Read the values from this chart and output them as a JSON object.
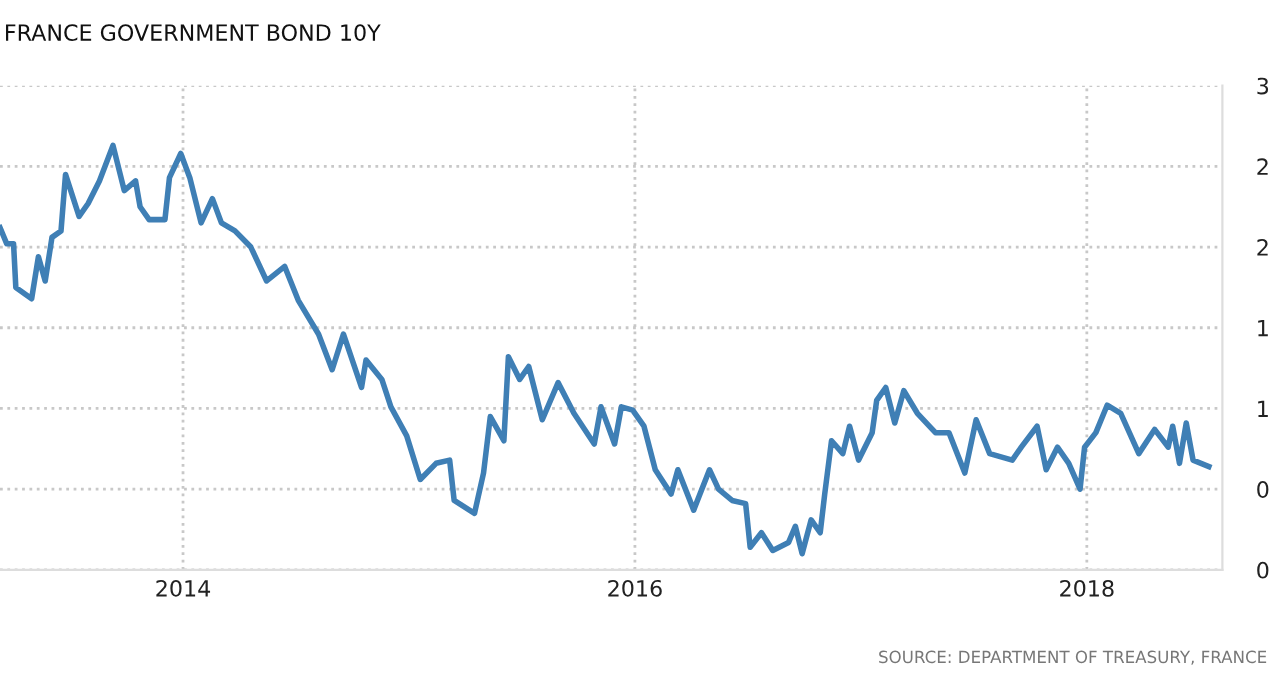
{
  "chart_data": {
    "type": "line",
    "title": "FRANCE GOVERNMENT BOND 10Y",
    "annotations": [
      "SOURCE: DEPARTMENT OF TREASURY, FRANCE"
    ],
    "x": [
      2013.19,
      2013.22,
      2013.25,
      2013.26,
      2013.33,
      2013.36,
      2013.39,
      2013.42,
      2013.46,
      2013.48,
      2013.54,
      2013.58,
      2013.63,
      2013.69,
      2013.74,
      2013.79,
      2013.81,
      2013.85,
      2013.92,
      2013.94,
      2013.99,
      2014.03,
      2014.08,
      2014.13,
      2014.17,
      2014.23,
      2014.3,
      2014.37,
      2014.45,
      2014.51,
      2014.6,
      2014.66,
      2014.71,
      2014.79,
      2014.81,
      2014.88,
      2014.92,
      2014.99,
      2015.05,
      2015.12,
      2015.18,
      2015.2,
      2015.29,
      2015.33,
      2015.36,
      2015.42,
      2015.44,
      2015.49,
      2015.53,
      2015.59,
      2015.66,
      2015.73,
      2015.82,
      2015.85,
      2015.91,
      2015.94,
      2015.99,
      2016.04,
      2016.09,
      2016.16,
      2016.19,
      2016.26,
      2016.33,
      2016.37,
      2016.43,
      2016.49,
      2016.51,
      2016.56,
      2016.61,
      2016.68,
      2016.71,
      2016.74,
      2016.78,
      2016.82,
      2016.84,
      2016.87,
      2016.92,
      2016.95,
      2016.99,
      2017.05,
      2017.07,
      2017.11,
      2017.15,
      2017.19,
      2017.25,
      2017.33,
      2017.39,
      2017.46,
      2017.51,
      2017.57,
      2017.67,
      2017.71,
      2017.78,
      2017.82,
      2017.87,
      2017.92,
      2017.97,
      2017.99,
      2018.04,
      2018.09,
      2018.15,
      2018.23,
      2018.3,
      2018.36,
      2018.38,
      2018.41,
      2018.44,
      2018.47,
      2018.54
    ],
    "series": [
      {
        "color": "#3f7fb5",
        "values": [
          2.12,
          2.02,
          2.02,
          1.75,
          1.68,
          1.94,
          1.79,
          2.06,
          2.1,
          2.45,
          2.19,
          2.27,
          2.41,
          2.63,
          2.35,
          2.41,
          2.25,
          2.17,
          2.17,
          2.43,
          2.58,
          2.43,
          2.15,
          2.3,
          2.15,
          2.1,
          2.0,
          1.79,
          1.88,
          1.67,
          1.46,
          1.24,
          1.46,
          1.13,
          1.3,
          1.18,
          1.01,
          0.83,
          0.56,
          0.66,
          0.68,
          0.43,
          0.35,
          0.6,
          0.95,
          0.8,
          1.32,
          1.18,
          1.26,
          0.93,
          1.16,
          0.97,
          0.78,
          1.01,
          0.78,
          1.01,
          0.99,
          0.89,
          0.62,
          0.47,
          0.62,
          0.37,
          0.62,
          0.5,
          0.43,
          0.41,
          0.14,
          0.23,
          0.12,
          0.17,
          0.27,
          0.1,
          0.31,
          0.23,
          0.47,
          0.8,
          0.72,
          0.89,
          0.68,
          0.85,
          1.05,
          1.13,
          0.91,
          1.11,
          0.97,
          0.85,
          0.85,
          0.6,
          0.93,
          0.72,
          0.68,
          0.76,
          0.89,
          0.62,
          0.76,
          0.66,
          0.5,
          0.76,
          0.85,
          1.02,
          0.97,
          0.72,
          0.87,
          0.76,
          0.89,
          0.66,
          0.91,
          0.68,
          0.64
        ]
      }
    ],
    "xlim": [
      2013.19,
      2018.6
    ],
    "xticks": [
      2014,
      2016,
      2018
    ],
    "ylim": [
      0,
      3
    ],
    "yticks": [
      {
        "value": 0,
        "label": "0"
      },
      {
        "value": 0.5,
        "label": "0"
      },
      {
        "value": 1,
        "label": "1"
      },
      {
        "value": 1.5,
        "label": "1"
      },
      {
        "value": 2,
        "label": "2"
      },
      {
        "value": 2.5,
        "label": "2"
      },
      {
        "value": 3,
        "label": "3"
      }
    ],
    "grid": true,
    "legend": false,
    "marker": "none",
    "line_style": "solid"
  }
}
